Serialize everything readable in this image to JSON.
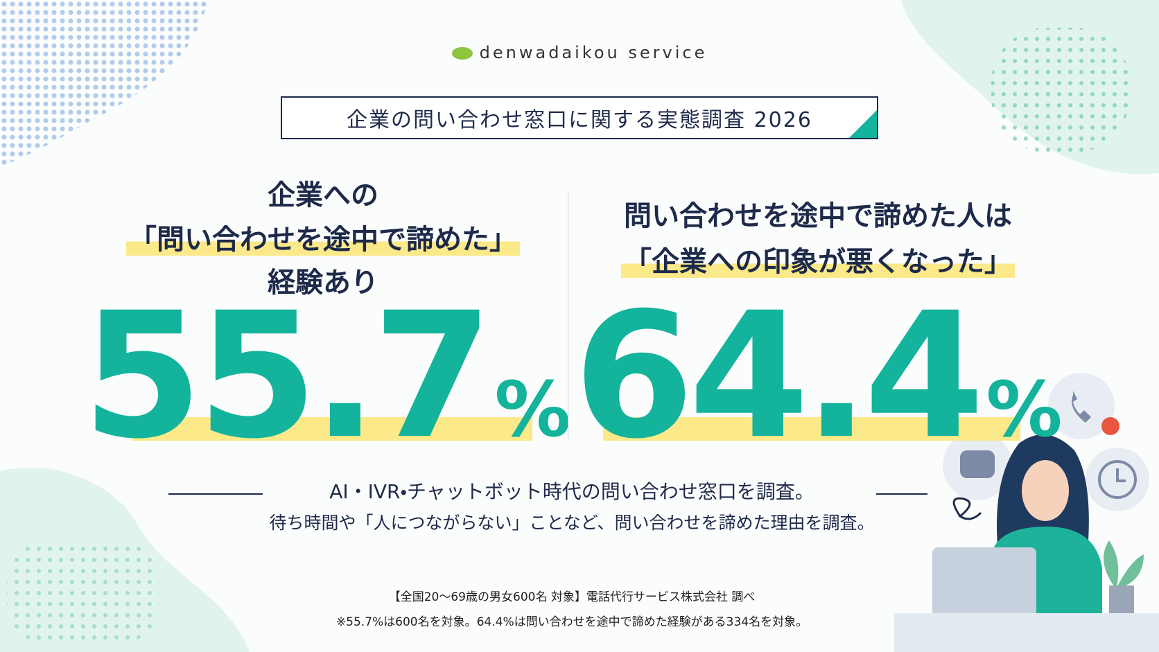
{
  "logo": "denwadaikou service",
  "title": "企業の問い合わせ窓口に関する実態調査 2026",
  "left": {
    "heading": [
      "企業への",
      "「問い合わせを途中で諦めた」",
      "経験あり"
    ],
    "stat": "55.7",
    "unit": "%"
  },
  "right": {
    "heading": [
      "問い合わせを途中で諦めた人は",
      "「企業への印象が悪くなった」"
    ],
    "stat": "64.4",
    "unit": "%"
  },
  "subtitle": "AI・IVR・チャットボット時代の問い合わせ窓口を調査。",
  "description": "待ち時間や「人につながらない」ことなど、問い合わせを諦めた理由を調査。",
  "notes": [
    "【全国20〜69歳の男女600名 対象】電話代行サービス株式会社 調べ",
    "※55.7%は600名を対象。64.4%は問い合わせを途中で諦めた経験がある334名を対象。"
  ]
}
